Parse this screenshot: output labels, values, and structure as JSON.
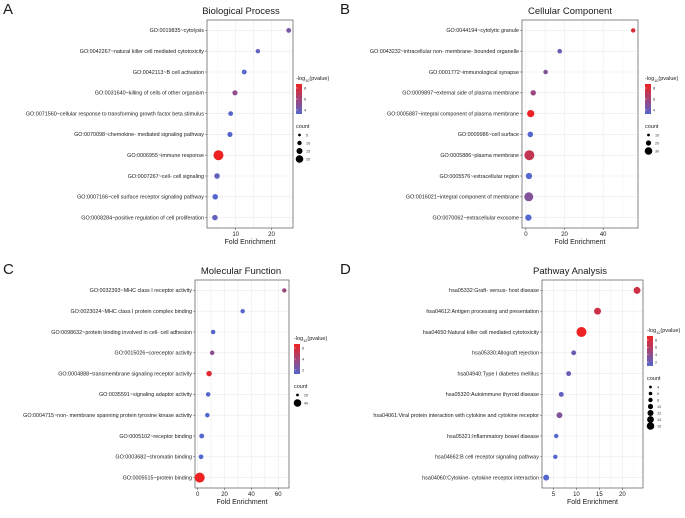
{
  "figure": {
    "color_low": "#5566cc",
    "color_high": "#ee2222",
    "legend_color_title": "-log",
    "legend_color_sub": "10",
    "legend_color_suffix": "(pvalue)",
    "legend_size_title": "count"
  },
  "chart_data": [
    {
      "type": "scatter",
      "panel_letter": "A",
      "title": "Biological Process",
      "xlabel": "Fold Enrichment",
      "ylabel": "",
      "xlim": [
        2,
        26
      ],
      "xticks": [
        10,
        20
      ],
      "grid": true,
      "categories": [
        "GO:0019835~cytolysis",
        "GO:0042267~natural killer cell mediated cytotoxicity",
        "GO:0042113~B cell activation",
        "GO:0031640~killing of cells of other organism",
        "GO:0071560~cellular response to transforming growth factor beta stimulus",
        "GO:0070098~chemokine- mediated signaling pathway",
        "GO:0006955~immune response",
        "GO:0007267~cell- cell signaling",
        "GO:0007166~cell surface receptor signaling pathway",
        "GO:0008284~positive regulation of cell proliferation"
      ],
      "x": [
        24.8,
        16.2,
        12.4,
        9.8,
        8.6,
        8.4,
        5.2,
        4.8,
        4.3,
        4.2
      ],
      "neglog10_pvalue": [
        4,
        3,
        2.5,
        5,
        2.5,
        2.5,
        9,
        3,
        2.5,
        3
      ],
      "count": [
        4,
        3,
        4,
        5,
        4,
        5,
        18,
        6,
        6,
        6
      ],
      "color_legend_ticks": [
        "8",
        "6",
        "4"
      ],
      "size_legend_ticks": [
        "5",
        "10",
        "15",
        "20"
      ]
    },
    {
      "type": "scatter",
      "panel_letter": "B",
      "title": "Cellular Component",
      "xlabel": "Fold Enrichment",
      "ylabel": "",
      "xlim": [
        -2,
        58
      ],
      "xticks": [
        0,
        20,
        40
      ],
      "grid": true,
      "categories": [
        "GO:0044194~cytolytic granule",
        "GO:0043232~intracellular non- membrane- bounded organelle",
        "GO:0001772~immunological synapse",
        "GO:0009897~external side of plasma membrane",
        "GO:0005887~integral component of plasma membrane",
        "GO:0009986~cell surface",
        "GO:0005886~plasma membrane",
        "GO:0005576~extracellular region",
        "GO:0016021~integral component of membrane",
        "GO:0070062~extracellular exosome"
      ],
      "x": [
        55.5,
        17.5,
        10.2,
        3.8,
        2.5,
        2.3,
        1.8,
        1.6,
        1.5,
        1.3
      ],
      "neglog10_pvalue": [
        8,
        3,
        4,
        5,
        9,
        2,
        7,
        2,
        4,
        2
      ],
      "count": [
        3,
        4,
        4,
        9,
        20,
        10,
        36,
        14,
        30,
        14
      ],
      "color_legend_ticks": [
        "8",
        "6",
        "4"
      ],
      "size_legend_ticks": [
        "10",
        "20",
        "30"
      ]
    },
    {
      "type": "scatter",
      "panel_letter": "C",
      "title": "Molecular Function",
      "xlabel": "Fold Enrichment",
      "ylabel": "",
      "xlim": [
        -2,
        68
      ],
      "xticks": [
        0,
        20,
        40,
        60
      ],
      "grid": true,
      "categories": [
        "GO:0032393~MHC class I receptor activity",
        "GO:0023024~MHC class I protein complex binding",
        "GO:0098632~protein binding involved in cell- cell adhesion",
        "GO:0015026~coreceptor activity",
        "GO:0004888~transmembrane signaling receptor activity",
        "GO:0035591~signaling adaptor activity",
        "GO:0004715~non- membrane spanning protein tyrosine kinase activity",
        "GO:0005102~receptor binding",
        "GO:0003682~chromatin binding",
        "GO:0005515~protein binding"
      ],
      "x": [
        64.5,
        33.5,
        11.5,
        10.8,
        8.5,
        7.8,
        7.2,
        3.0,
        2.5,
        1.5
      ],
      "neglog10_pvalue": [
        4.5,
        2,
        2,
        4,
        7,
        2,
        2,
        2,
        2,
        7.5
      ],
      "count": [
        3,
        3,
        4,
        4,
        10,
        4,
        4,
        6,
        5,
        40
      ],
      "color_legend_ticks": [
        "6",
        "4",
        "2"
      ],
      "size_legend_ticks": [
        "20",
        "40"
      ]
    },
    {
      "type": "scatter",
      "panel_letter": "D",
      "title": "Pathway Analysis",
      "xlabel": "Fold Enrichment",
      "ylabel": "",
      "xlim": [
        2.5,
        24.5
      ],
      "xticks": [
        5,
        10,
        15,
        20
      ],
      "grid": true,
      "categories": [
        "hsa05332:Graft- versus- host disease",
        "hsa04612:Antigen processing and presentation",
        "hsa04650:Natural killer cell mediated cytotoxicity",
        "hsa05330:Allograft rejection",
        "hsa04940:Type I diabetes mellitus",
        "hsa05320:Autoimmune thyroid disease",
        "hsa04061:Viral protein interaction with cytokine and cytokine receptor",
        "hsa05321:Inflammatory bowel disease",
        "hsa04662:B cell receptor signaling pathway",
        "hsa04060:Cytokine- cytokine receptor interaction"
      ],
      "x": [
        23.2,
        14.6,
        11.1,
        9.4,
        8.3,
        6.7,
        6.3,
        5.6,
        5.4,
        3.4
      ],
      "neglog10_pvalue": [
        7.5,
        7.5,
        9,
        3,
        3,
        2.5,
        4,
        2,
        2,
        2
      ],
      "count": [
        9,
        9,
        15,
        5,
        5,
        5,
        7,
        4,
        4,
        7
      ],
      "color_legend_ticks": [
        "8",
        "6",
        "4",
        "2"
      ],
      "size_legend_ticks": [
        "4",
        "6",
        "8",
        "10",
        "12",
        "14",
        "16"
      ]
    }
  ]
}
